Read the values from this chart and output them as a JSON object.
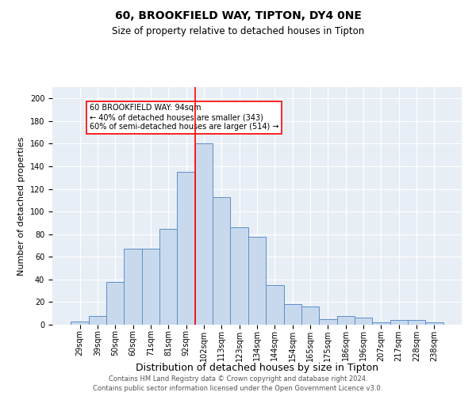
{
  "title1": "60, BROOKFIELD WAY, TIPTON, DY4 0NE",
  "title2": "Size of property relative to detached houses in Tipton",
  "xlabel": "Distribution of detached houses by size in Tipton",
  "ylabel": "Number of detached properties",
  "categories": [
    "29sqm",
    "39sqm",
    "50sqm",
    "60sqm",
    "71sqm",
    "81sqm",
    "92sqm",
    "102sqm",
    "113sqm",
    "123sqm",
    "134sqm",
    "144sqm",
    "154sqm",
    "165sqm",
    "175sqm",
    "186sqm",
    "196sqm",
    "207sqm",
    "217sqm",
    "228sqm",
    "238sqm"
  ],
  "bar_values": [
    3,
    8,
    38,
    67,
    67,
    85,
    135,
    160,
    113,
    86,
    78,
    35,
    18,
    16,
    5,
    8,
    6,
    2,
    4,
    4,
    2
  ],
  "bar_color": "#c9d9ed",
  "bar_edge_color": "#5b8fc9",
  "vline_x": 6.5,
  "vline_color": "red",
  "annotation_text": "60 BROOKFIELD WAY: 94sqm\n← 40% of detached houses are smaller (343)\n60% of semi-detached houses are larger (514) →",
  "annotation_box_color": "white",
  "annotation_box_edge_color": "red",
  "ylim": [
    0,
    210
  ],
  "yticks": [
    0,
    20,
    40,
    60,
    80,
    100,
    120,
    140,
    160,
    180,
    200
  ],
  "bg_color": "#e8eef5",
  "footer1": "Contains HM Land Registry data © Crown copyright and database right 2024.",
  "footer2": "Contains public sector information licensed under the Open Government Licence v3.0.",
  "title1_fontsize": 10,
  "title2_fontsize": 8.5,
  "xlabel_fontsize": 9,
  "ylabel_fontsize": 8,
  "tick_fontsize": 7,
  "footer_fontsize": 6,
  "annotation_fontsize": 7
}
